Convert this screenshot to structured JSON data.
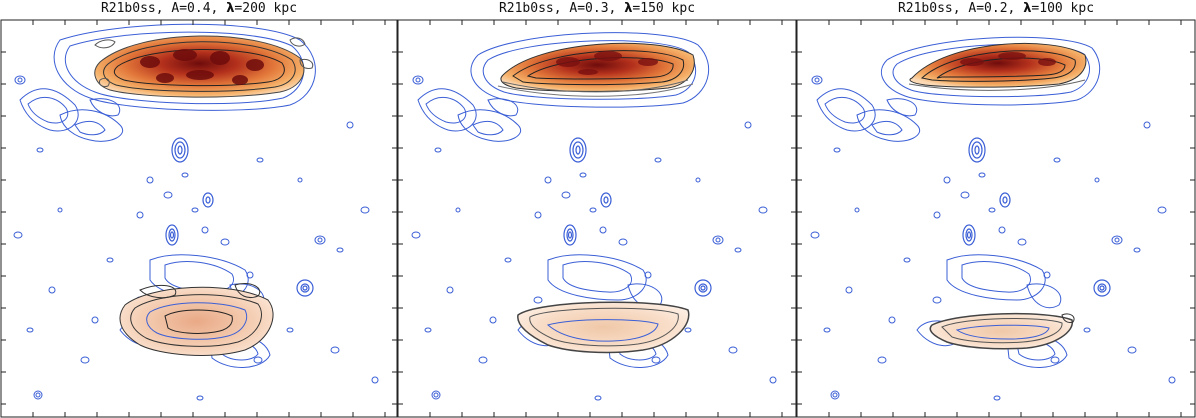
{
  "panels": [
    {
      "id": "left",
      "title_prefix": "R21b0ss, A=0.4, ",
      "lambda_symbol": "λ",
      "title_suffix": "=200 kpc"
    },
    {
      "id": "middle",
      "title_prefix": "R21b0ss, A=0.3, ",
      "lambda_symbol": "λ",
      "title_suffix": "=150 kpc"
    },
    {
      "id": "right",
      "title_prefix": "R21b0ss, A=0.2, ",
      "lambda_symbol": "λ",
      "title_suffix": "=100 kpc"
    }
  ],
  "colors": {
    "blue_contours": "#3b5fd6",
    "grey_contours": "#555555",
    "relic_core": "#7a1010",
    "relic_mid": "#d4502a",
    "relic_outer": "#f5a35a",
    "relic_faint": "#fbd9b5",
    "frame": "#222222"
  }
}
